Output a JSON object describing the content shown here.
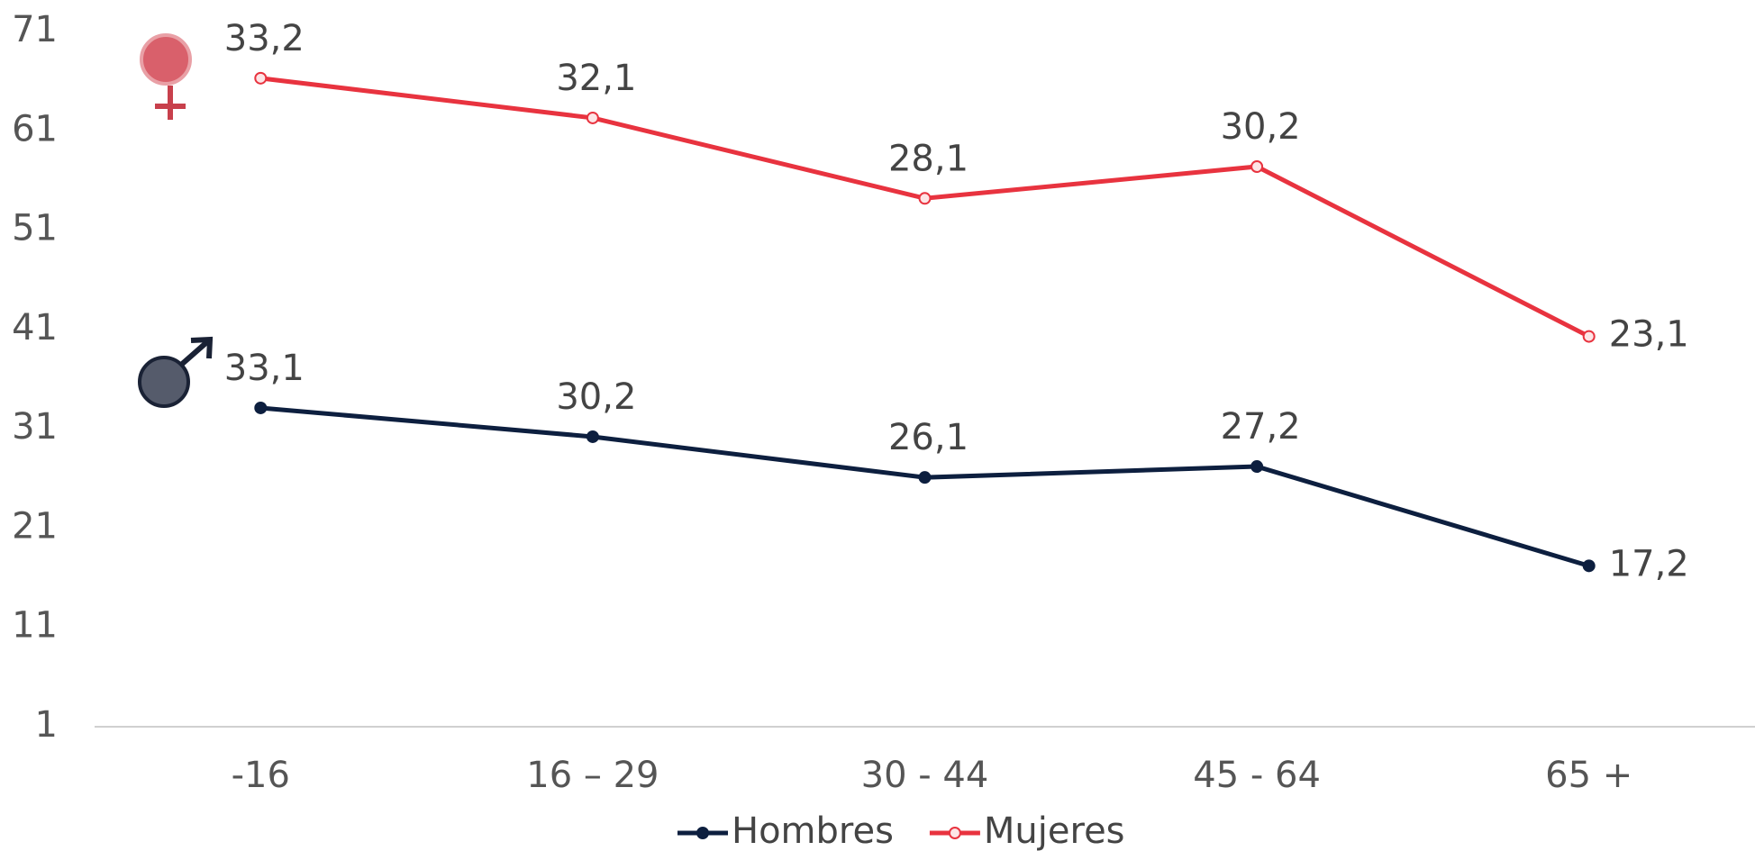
{
  "chart_data": {
    "type": "line",
    "stacked": true,
    "categories": [
      "-16",
      "16 – 29",
      "30 - 44",
      "45 - 64",
      "65 +"
    ],
    "series": [
      {
        "name": "Hombres",
        "color": "#0d1f3f",
        "values": [
          33.1,
          30.2,
          26.1,
          27.2,
          17.2
        ],
        "value_labels": [
          "33,1",
          "30,2",
          "26,1",
          "27,2",
          "17,2"
        ]
      },
      {
        "name": "Mujeres",
        "color": "#e8333f",
        "values": [
          33.2,
          32.1,
          28.1,
          30.2,
          23.1
        ],
        "value_labels": [
          "33,2",
          "32,1",
          "28,1",
          "30,2",
          "23,1"
        ]
      }
    ],
    "ylim": [
      1,
      71
    ],
    "yticks": [
      1,
      11,
      21,
      31,
      41,
      51,
      61,
      71
    ],
    "grid": false,
    "legend": "bottom"
  }
}
